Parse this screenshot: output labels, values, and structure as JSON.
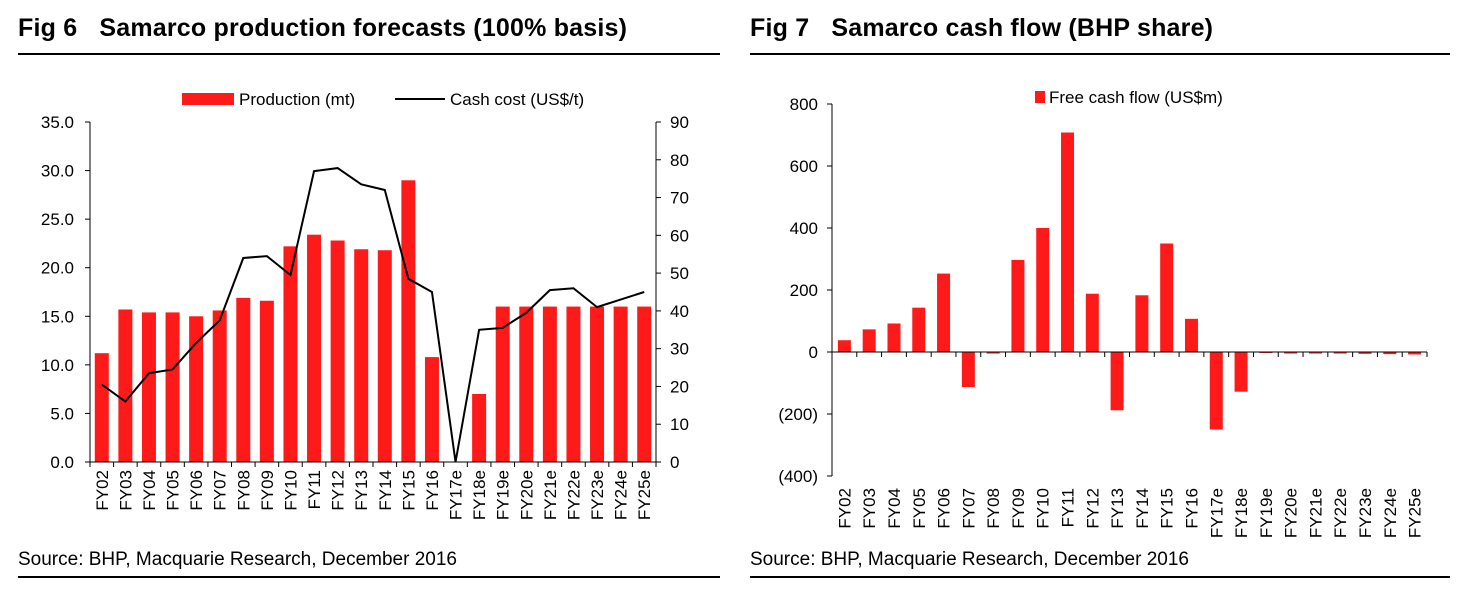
{
  "colors": {
    "bar": "#ff1a1a",
    "line": "#000000",
    "axis": "#000000"
  },
  "figures": [
    {
      "number": "Fig 6",
      "title": "Samarco production forecasts (100% basis)",
      "source": "Source: BHP, Macquarie Research, December 2016"
    },
    {
      "number": "Fig 7",
      "title": "Samarco cash flow (BHP share)",
      "source": "Source: BHP, Macquarie Research, December 2016"
    }
  ],
  "chart_data": [
    {
      "type": "bar+line",
      "title": "Samarco production forecasts (100% basis)",
      "categories": [
        "FY02",
        "FY03",
        "FY04",
        "FY05",
        "FY06",
        "FY07",
        "FY08",
        "FY09",
        "FY10",
        "FY11",
        "FY12",
        "FY13",
        "FY14",
        "FY15",
        "FY16",
        "FY17e",
        "FY18e",
        "FY19e",
        "FY20e",
        "FY21e",
        "FY22e",
        "FY23e",
        "FY24e",
        "FY25e"
      ],
      "series": [
        {
          "name": "Production (mt)",
          "type": "bar",
          "axis": "left",
          "values": [
            11.2,
            15.7,
            15.4,
            15.4,
            15.0,
            15.6,
            16.9,
            16.6,
            22.2,
            23.4,
            22.8,
            21.9,
            21.8,
            29.0,
            10.8,
            0.0,
            7.0,
            16.0,
            16.0,
            16.0,
            16.0,
            16.0,
            16.0,
            16.0
          ]
        },
        {
          "name": "Cash cost (US$/t)",
          "type": "line",
          "axis": "right",
          "values": [
            20.5,
            16.0,
            23.5,
            24.5,
            31.5,
            37.5,
            54.0,
            54.5,
            49.5,
            77.0,
            77.8,
            73.5,
            72.0,
            48.5,
            45.0,
            0.0,
            35.0,
            35.5,
            39.5,
            45.5,
            46.0,
            41.0,
            43.0,
            45.0
          ]
        }
      ],
      "y_left": {
        "min": 0,
        "max": 35,
        "ticks": [
          "0.0",
          "5.0",
          "10.0",
          "15.0",
          "20.0",
          "25.0",
          "30.0",
          "35.0"
        ]
      },
      "y_right": {
        "min": 0,
        "max": 90,
        "ticks": [
          "0",
          "10",
          "20",
          "30",
          "40",
          "50",
          "60",
          "70",
          "80",
          "90"
        ]
      },
      "legend": {
        "position": "top",
        "entries": [
          "Production (mt)",
          "Cash cost (US$/t)"
        ]
      },
      "grid": false
    },
    {
      "type": "bar",
      "title": "Samarco cash flow (BHP share)",
      "categories": [
        "FY02",
        "FY03",
        "FY04",
        "FY05",
        "FY06",
        "FY07",
        "FY08",
        "FY09",
        "FY10",
        "FY11",
        "FY12",
        "FY13",
        "FY14",
        "FY15",
        "FY16",
        "FY17e",
        "FY18e",
        "FY19e",
        "FY20e",
        "FY21e",
        "FY22e",
        "FY23e",
        "FY24e",
        "FY25e"
      ],
      "series": [
        {
          "name": "Free cash flow (US$m)",
          "values": [
            38,
            73,
            92,
            143,
            253,
            -113,
            -5,
            297,
            400,
            708,
            188,
            -188,
            183,
            350,
            107,
            -250,
            -128,
            -3,
            -5,
            -5,
            -5,
            -6,
            -7,
            -8
          ]
        }
      ],
      "y": {
        "min": -400,
        "max": 800,
        "ticks": [
          "(400)",
          "(200)",
          "0",
          "200",
          "400",
          "600",
          "800"
        ]
      },
      "legend": {
        "position": "top",
        "entries": [
          "Free cash flow (US$m)"
        ]
      },
      "grid": false
    }
  ]
}
